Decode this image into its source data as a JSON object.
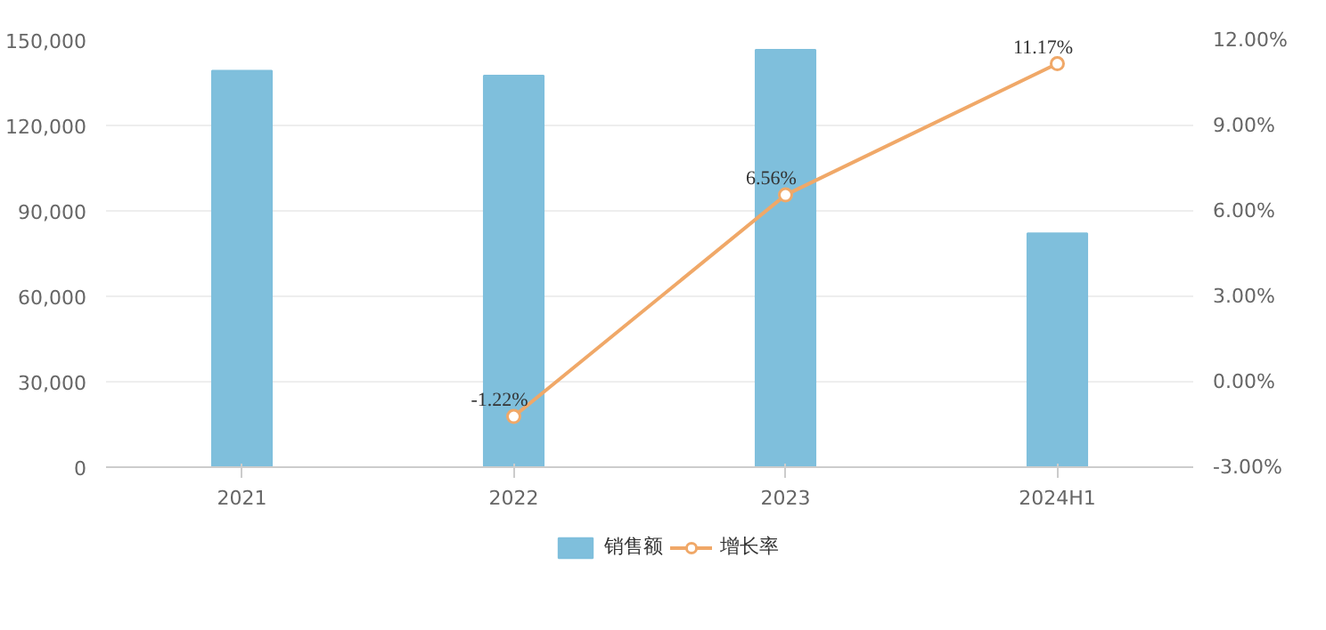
{
  "chart_data": {
    "type": "bar",
    "categories": [
      "2021",
      "2022",
      "2023",
      "2024H1"
    ],
    "series": [
      {
        "name": "销售额",
        "color": "#7fbfdc",
        "values": [
          139200,
          137500,
          146600,
          82100
        ]
      },
      {
        "name": "增长率",
        "type": "line",
        "axis": "y2",
        "color": "#f0a868",
        "marker": "circle",
        "values": [
          null,
          -1.22,
          6.56,
          11.17
        ],
        "value_labels": [
          null,
          "-1.22%",
          "6.56%",
          "11.17%"
        ]
      }
    ],
    "ylim": [
      0,
      150000
    ],
    "yticks": [
      {
        "value": 0,
        "label": "0"
      },
      {
        "value": 30000,
        "label": "30,000"
      },
      {
        "value": 60000,
        "label": "60,000"
      },
      {
        "value": 90000,
        "label": "90,000"
      },
      {
        "value": 120000,
        "label": "120,000"
      },
      {
        "value": 150000,
        "label": "150,000"
      }
    ],
    "y2lim": [
      -3,
      12
    ],
    "y2ticks": [
      {
        "value": -3,
        "label": "-3.00%"
      },
      {
        "value": 0,
        "label": "0.00%"
      },
      {
        "value": 3,
        "label": "3.00%"
      },
      {
        "value": 6,
        "label": "6.00%"
      },
      {
        "value": 9,
        "label": "9.00%"
      },
      {
        "value": 12,
        "label": "12.00%"
      }
    ],
    "grid": "y",
    "legend": "bottom"
  }
}
